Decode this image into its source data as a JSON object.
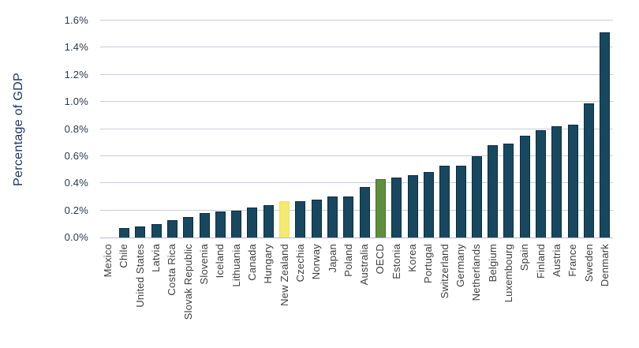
{
  "chart_data": {
    "type": "bar",
    "title": "",
    "ylabel": "Percentage of GDP",
    "xlabel": "",
    "unit": "% of GDP",
    "ylim": [
      0,
      1.6
    ],
    "ytick_step": 0.2,
    "yticks": [
      "0.0%",
      "0.2%",
      "0.4%",
      "0.6%",
      "0.8%",
      "1.0%",
      "1.2%",
      "1.4%",
      "1.6%"
    ],
    "grid": true,
    "legend": false,
    "categories": [
      "Mexico",
      "Chile",
      "United States",
      "Latvia",
      "Costa Rica",
      "Slovak Republic",
      "Slovenia",
      "Iceland",
      "Lithuania",
      "Canada",
      "Hungary",
      "New Zealand",
      "Czechia",
      "Norway",
      "Japan",
      "Poland",
      "Australia",
      "OECD",
      "Estonia",
      "Korea",
      "Portugal",
      "Switzerland",
      "Germany",
      "Netherlands",
      "Belgium",
      "Luxembourg",
      "Spain",
      "Finland",
      "Austria",
      "France",
      "Sweden",
      "Denmark"
    ],
    "values": [
      0.0,
      0.07,
      0.08,
      0.1,
      0.13,
      0.15,
      0.18,
      0.19,
      0.2,
      0.22,
      0.24,
      0.27,
      0.27,
      0.28,
      0.3,
      0.3,
      0.37,
      0.43,
      0.44,
      0.46,
      0.48,
      0.53,
      0.53,
      0.6,
      0.68,
      0.69,
      0.75,
      0.79,
      0.82,
      0.83,
      0.99,
      1.51
    ],
    "highlights": [
      {
        "category": "New Zealand",
        "fill": "#f3ea6e",
        "border": "#ece15c"
      },
      {
        "category": "OECD",
        "fill": "#5f8f3e",
        "border": "#436f29"
      }
    ],
    "colors": {
      "bar_fill": "#17485f",
      "bar_border": "#0d2c44",
      "gridline": "#c9cdda",
      "axis_line": "#b4bbcb",
      "y_title_text": "#1d3763",
      "y_tick_text": "#2b3a4a",
      "x_label_text": "#3e3e3e",
      "background": "#ffffff"
    }
  }
}
